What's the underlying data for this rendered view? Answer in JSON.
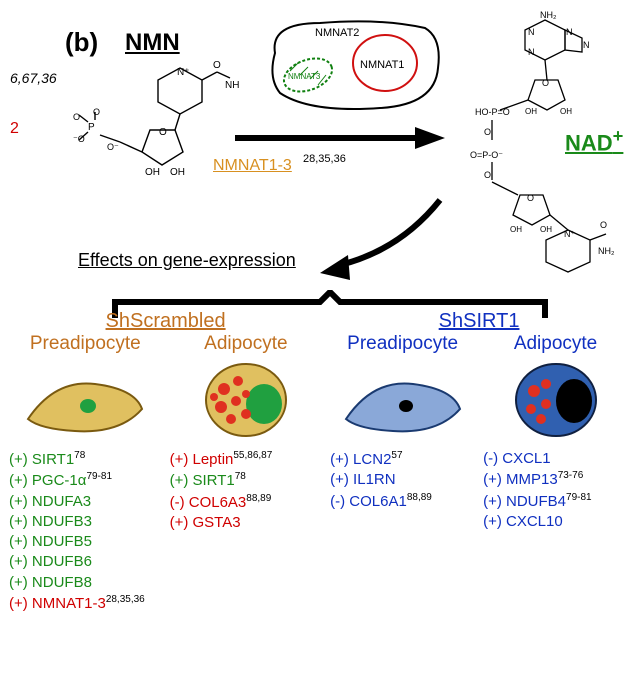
{
  "panel": "(b)",
  "nmn": "NMN",
  "side_refs": "6,67,36",
  "side_red": "2",
  "enzyme": "NMNAT1-3",
  "enzyme_refs": "28,35,36",
  "nad": "NAD",
  "nad_sup": "+",
  "effects": "Effects on gene-expression",
  "organelle_labels": {
    "nmnat1": "NMNAT1",
    "nmnat2": "NMNAT2",
    "nmnat3": "NMNAT3"
  },
  "groups": {
    "scrambled": {
      "title": "ShScrambled",
      "title_color": "#c07020",
      "preadipocyte": {
        "label": "Preadipocyte",
        "label_color": "#c07020",
        "cell": {
          "body_fill": "#e0c060",
          "body_stroke": "#7a5a10",
          "nucleus_fill": "#20a040",
          "shape": "spindle"
        },
        "genes": [
          {
            "sign": "(+)",
            "name": "SIRT1",
            "refs": "78",
            "color": "#1a8a1a"
          },
          {
            "sign": "(+)",
            "name": "PGC-1α",
            "refs": "79-81",
            "color": "#1a8a1a"
          },
          {
            "sign": "(+)",
            "name": "NDUFA3",
            "refs": "",
            "color": "#1a8a1a"
          },
          {
            "sign": "(+)",
            "name": "NDUFB3",
            "refs": "",
            "color": "#1a8a1a"
          },
          {
            "sign": "(+)",
            "name": "NDUFB5",
            "refs": "",
            "color": "#1a8a1a"
          },
          {
            "sign": "(+)",
            "name": "NDUFB6",
            "refs": "",
            "color": "#1a8a1a"
          },
          {
            "sign": "(+)",
            "name": "NDUFB8",
            "refs": "",
            "color": "#1a8a1a"
          },
          {
            "sign": "(+)",
            "name": "NMNAT1-3",
            "refs": "28,35,36",
            "color": "#d00000"
          }
        ]
      },
      "adipocyte": {
        "label": "Adipocyte",
        "label_color": "#c07020",
        "cell": {
          "body_fill": "#e0c060",
          "body_stroke": "#7a5a10",
          "nucleus_fill": "#20a040",
          "droplet_fill": "#e03020",
          "shape": "round"
        },
        "genes": [
          {
            "sign": "(+)",
            "name": "Leptin",
            "refs": "55,86,87",
            "color": "#d00000"
          },
          {
            "sign": "(+)",
            "name": "SIRT1",
            "refs": "78",
            "color": "#1a8a1a"
          },
          {
            "sign": "(-)",
            "name": "COL6A3",
            "refs": "88,89",
            "color": "#d00000"
          },
          {
            "sign": "(+)",
            "name": "GSTA3",
            "refs": "",
            "color": "#d00000"
          }
        ]
      }
    },
    "sirt1": {
      "title": "ShSIRT1",
      "title_color": "#1030c0",
      "preadipocyte": {
        "label": "Preadipocyte",
        "label_color": "#1030c0",
        "cell": {
          "body_fill": "#8aa8d8",
          "body_stroke": "#1a3a70",
          "nucleus_fill": "#000000",
          "shape": "spindle"
        },
        "genes": [
          {
            "sign": "(+)",
            "name": "LCN2",
            "refs": "57",
            "color": "#1030c0"
          },
          {
            "sign": "(+)",
            "name": "IL1RN",
            "refs": "",
            "color": "#1030c0"
          },
          {
            "sign": "(-)",
            "name": "COL6A1",
            "refs": "88,89",
            "color": "#1030c0"
          }
        ]
      },
      "adipocyte": {
        "label": "Adipocyte",
        "label_color": "#1030c0",
        "cell": {
          "body_fill": "#3060b0",
          "body_stroke": "#102040",
          "nucleus_fill": "#000000",
          "droplet_fill": "#e03020",
          "shape": "round"
        },
        "genes": [
          {
            "sign": "(-)",
            "name": "CXCL1",
            "refs": "",
            "color": "#1030c0"
          },
          {
            "sign": "(+)",
            "name": "MMP13",
            "refs": "73-76",
            "color": "#1030c0"
          },
          {
            "sign": "(+)",
            "name": "NDUFB4",
            "refs": "79-81",
            "color": "#1030c0"
          },
          {
            "sign": "(+)",
            "name": "CXCL10",
            "refs": "",
            "color": "#1030c0"
          }
        ]
      }
    }
  },
  "styling": {
    "font_family": "Arial",
    "background": "#ffffff",
    "arrow_color": "#000000",
    "mol_line_color": "#000000",
    "organelle": {
      "membrane": "#000000",
      "nucleus": "#d01010",
      "mito_stroke": "#108010",
      "mito_fill": "#ffffff"
    }
  }
}
